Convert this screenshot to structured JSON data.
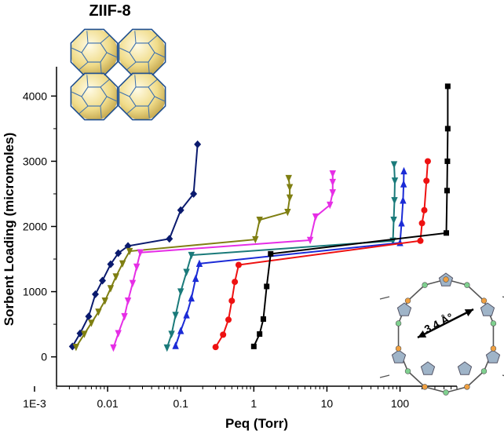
{
  "chart_data": {
    "type": "line",
    "xlabel": "Peq (Torr)",
    "ylabel": "Sorbent Loading (micromoles)",
    "x_scale": "log",
    "xlim": [
      0.002,
      600
    ],
    "ylim": [
      -450,
      4450
    ],
    "x_ticks": [
      {
        "value": 0.001,
        "label": "1E-3"
      },
      {
        "value": 0.01,
        "label": "0.01"
      },
      {
        "value": 0.1,
        "label": "0.1"
      },
      {
        "value": 1,
        "label": "1"
      },
      {
        "value": 10,
        "label": "10"
      },
      {
        "value": 100,
        "label": "100"
      }
    ],
    "y_ticks": [
      0,
      1000,
      2000,
      3000,
      4000
    ],
    "grid": false,
    "series": [
      {
        "color": "#0a1a6e",
        "marker": "diamond",
        "points": [
          [
            0.0033,
            160
          ],
          [
            0.0042,
            360
          ],
          [
            0.0055,
            620
          ],
          [
            0.0068,
            960
          ],
          [
            0.0085,
            1170
          ],
          [
            0.011,
            1420
          ],
          [
            0.014,
            1590
          ],
          [
            0.019,
            1700
          ],
          [
            0.07,
            1810
          ],
          [
            0.1,
            2250
          ],
          [
            0.15,
            2500
          ],
          [
            0.17,
            3260
          ]
        ]
      },
      {
        "color": "#7f7f12",
        "marker": "triangle-down",
        "points": [
          [
            0.0037,
            150
          ],
          [
            0.0048,
            350
          ],
          [
            0.006,
            520
          ],
          [
            0.0075,
            690
          ],
          [
            0.0092,
            860
          ],
          [
            0.011,
            1050
          ],
          [
            0.013,
            1230
          ],
          [
            0.016,
            1430
          ],
          [
            0.02,
            1620
          ],
          [
            1.05,
            1800
          ],
          [
            1.2,
            2100
          ],
          [
            2.9,
            2220
          ],
          [
            3.1,
            2440
          ],
          [
            3.1,
            2600
          ],
          [
            3.0,
            2740
          ]
        ]
      },
      {
        "color": "#e62ee6",
        "marker": "triangle-down",
        "points": [
          [
            0.012,
            140
          ],
          [
            0.014,
            360
          ],
          [
            0.017,
            620
          ],
          [
            0.019,
            860
          ],
          [
            0.022,
            1130
          ],
          [
            0.025,
            1380
          ],
          [
            0.028,
            1600
          ],
          [
            5.9,
            1790
          ],
          [
            7.0,
            2150
          ],
          [
            11,
            2330
          ],
          [
            12,
            2520
          ],
          [
            12,
            2680
          ],
          [
            12,
            2810
          ]
        ]
      },
      {
        "color": "#1a7a7a",
        "marker": "triangle-down",
        "points": [
          [
            0.065,
            140
          ],
          [
            0.075,
            350
          ],
          [
            0.085,
            640
          ],
          [
            0.1,
            1000
          ],
          [
            0.12,
            1300
          ],
          [
            0.14,
            1560
          ],
          [
            80,
            1780
          ],
          [
            82,
            2100
          ],
          [
            84,
            2400
          ],
          [
            85,
            2700
          ],
          [
            83,
            2950
          ]
        ]
      },
      {
        "color": "#1b2bd6",
        "marker": "triangle-up",
        "points": [
          [
            0.085,
            170
          ],
          [
            0.1,
            400
          ],
          [
            0.12,
            640
          ],
          [
            0.14,
            900
          ],
          [
            0.16,
            1200
          ],
          [
            0.18,
            1430
          ],
          [
            100,
            1750
          ],
          [
            105,
            2050
          ],
          [
            110,
            2400
          ],
          [
            112,
            2650
          ],
          [
            113,
            2850
          ]
        ]
      },
      {
        "color": "#ee1111",
        "marker": "circle",
        "points": [
          [
            0.3,
            150
          ],
          [
            0.38,
            340
          ],
          [
            0.45,
            570
          ],
          [
            0.5,
            860
          ],
          [
            0.55,
            1150
          ],
          [
            0.62,
            1410
          ],
          [
            190,
            1780
          ],
          [
            200,
            2050
          ],
          [
            215,
            2250
          ],
          [
            230,
            2700
          ],
          [
            240,
            3000
          ]
        ]
      },
      {
        "color": "#000000",
        "marker": "square",
        "points": [
          [
            1.0,
            160
          ],
          [
            1.2,
            350
          ],
          [
            1.35,
            580
          ],
          [
            1.5,
            1080
          ],
          [
            1.7,
            1580
          ],
          [
            430,
            1900
          ],
          [
            440,
            2550
          ],
          [
            445,
            3000
          ],
          [
            450,
            3500
          ],
          [
            450,
            4150
          ]
        ]
      }
    ],
    "annotations": [
      {
        "text": "3.4 Å°"
      }
    ],
    "inset_title": "ZIIF-8"
  }
}
